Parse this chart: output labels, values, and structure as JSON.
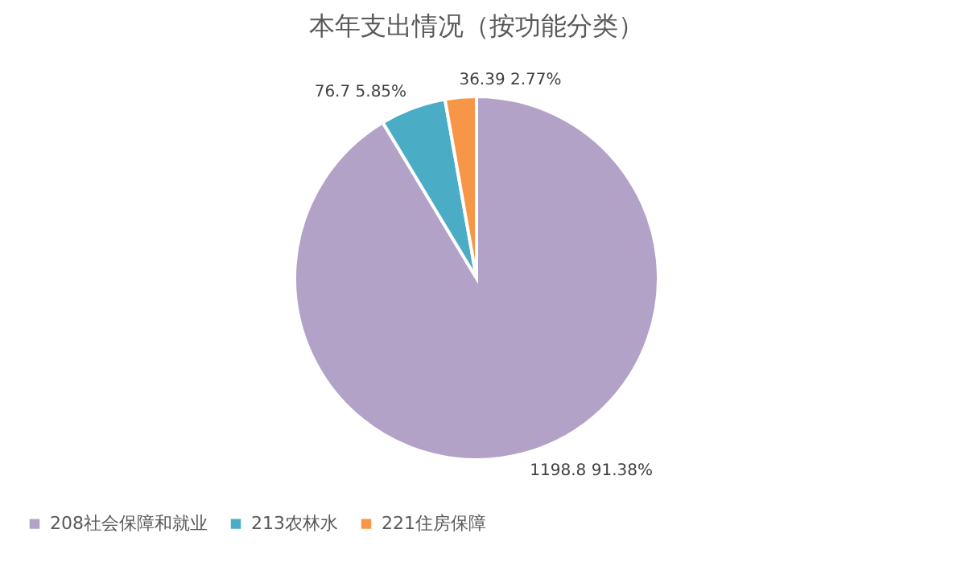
{
  "chart_data": {
    "type": "pie",
    "title": "本年支出情况（按功能分类）",
    "categories": [
      "208社会保障和就业",
      "213农林水",
      "221住房保障"
    ],
    "values": [
      1198.8,
      76.7,
      36.39
    ],
    "colors": [
      "#b3a2c7",
      "#4bacc6",
      "#f79646"
    ],
    "value_labels": [
      "1198.8  91.38%",
      "76.7  5.85%",
      "36.39  2.77%"
    ],
    "legend": "bottom"
  }
}
